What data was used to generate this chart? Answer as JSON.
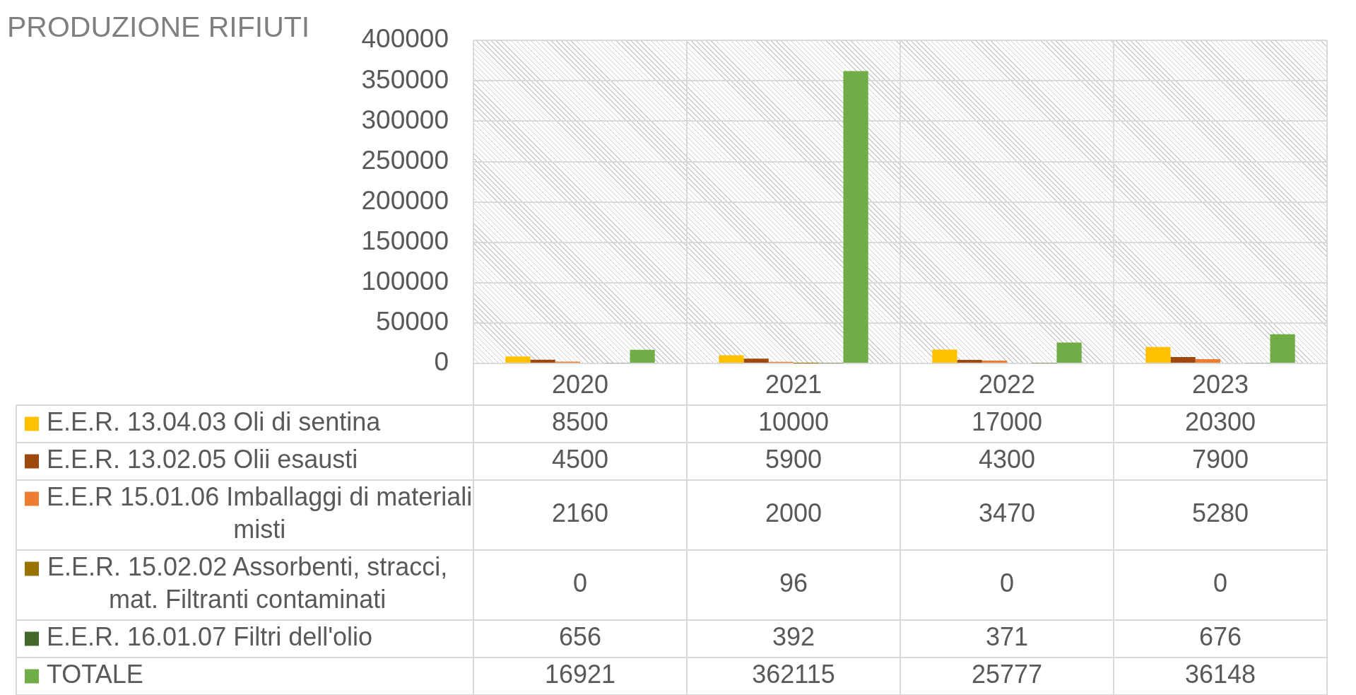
{
  "chart_data": {
    "type": "bar",
    "title": "PRODUZIONE RIFIUTI",
    "categories": [
      "2020",
      "2021",
      "2022",
      "2023"
    ],
    "series": [
      {
        "name": "E.E.R. 13.04.03 Oli di sentina",
        "color": "#ffc000",
        "values": [
          8500,
          10000,
          17000,
          20300
        ]
      },
      {
        "name": "E.E.R. 13.02.05 Olii esausti",
        "color": "#9e480e",
        "values": [
          4500,
          5900,
          4300,
          7900
        ]
      },
      {
        "name": "E.E.R 15.01.06 Imballaggi di materiali misti",
        "color": "#ed7d31",
        "values": [
          2160,
          2000,
          3470,
          5280
        ]
      },
      {
        "name": "E.E.R. 15.02.02 Assorbenti, stracci, mat. Filtranti contaminati",
        "color": "#997300",
        "values": [
          0,
          96,
          0,
          0
        ]
      },
      {
        "name": "E.E.R. 16.01.07 Filtri dell'olio",
        "color": "#43682b",
        "values": [
          656,
          392,
          371,
          676
        ]
      },
      {
        "name": "TOTALE",
        "color": "#70ad47",
        "values": [
          16921,
          362115,
          25777,
          36148
        ]
      }
    ],
    "ylim": [
      0,
      400000
    ],
    "yticks": [
      0,
      50000,
      100000,
      150000,
      200000,
      250000,
      300000,
      350000,
      400000
    ],
    "grid": true,
    "legend": "bottom left",
    "data_labels": true
  }
}
